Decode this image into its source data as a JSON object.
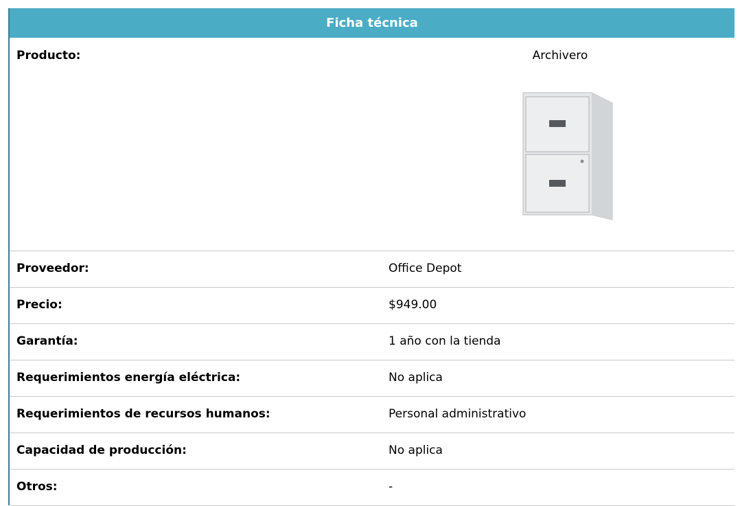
{
  "header": {
    "title": "Ficha técnica"
  },
  "product": {
    "label": "Producto:",
    "value": "Archivero"
  },
  "rows": [
    [
      "Proveedor:",
      "Office Depot"
    ],
    [
      "Precio:",
      "$949.00"
    ],
    [
      "Garantía:",
      "1 año con la tienda"
    ],
    [
      "Requerimientos energía eléctrica:",
      "No aplica"
    ],
    [
      "Requerimientos de recursos humanos:",
      "Personal administrativo"
    ],
    [
      "Capacidad de producción:",
      "No aplica"
    ],
    [
      "Otros:",
      "-"
    ]
  ]
}
